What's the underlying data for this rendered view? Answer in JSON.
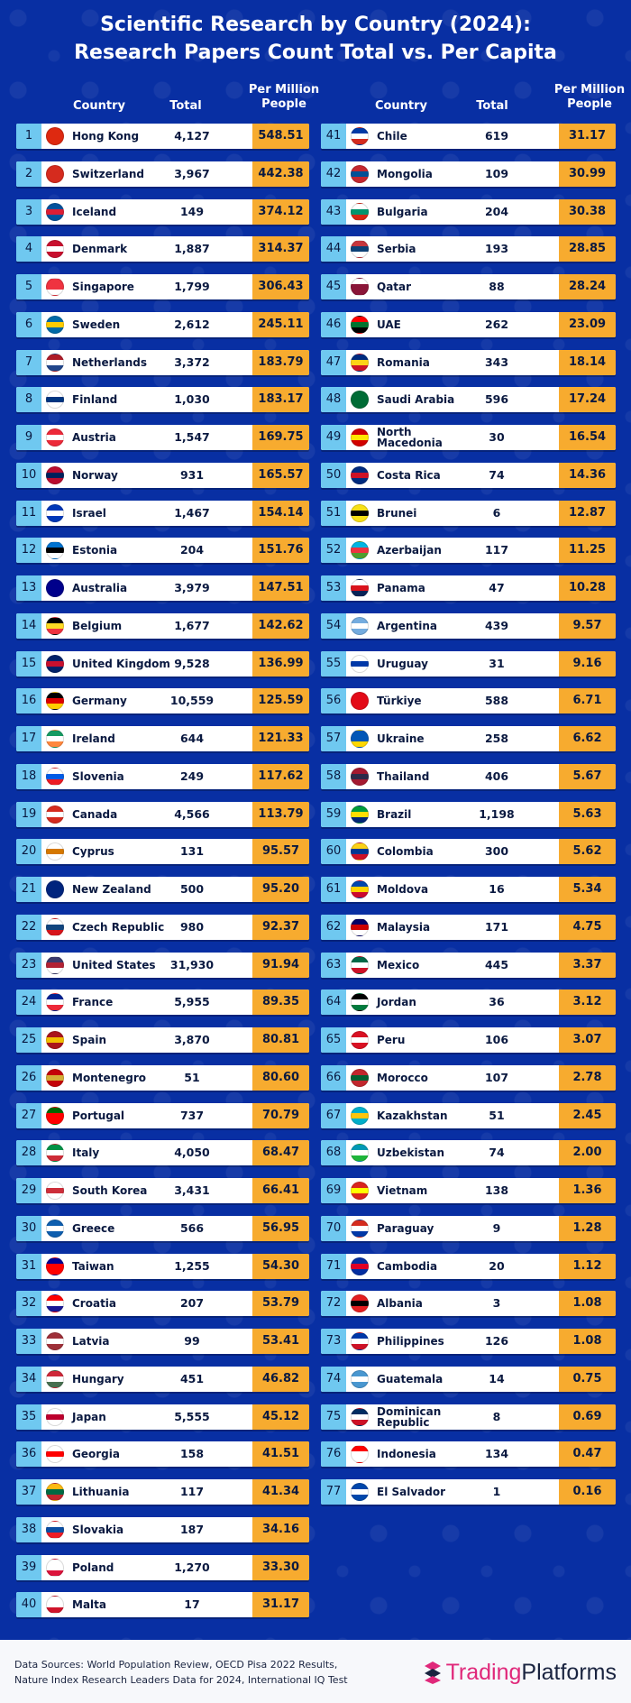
{
  "header": {
    "title_line1": "Scientific Research by Country (2024):",
    "title_line2": "Research Papers Count Total vs. Per Capita"
  },
  "columns": {
    "country": "Country",
    "total": "Total",
    "per_million_line1": "Per Million",
    "per_million_line2": "People"
  },
  "left_rows": [
    {
      "rank": "1",
      "country": "Hong Kong",
      "total": "4,127",
      "per_million": "548.51",
      "flag": [
        "#de2910",
        "#de2910",
        "#de2910"
      ]
    },
    {
      "rank": "2",
      "country": "Switzerland",
      "total": "3,967",
      "per_million": "442.38",
      "flag": [
        "#d52b1e",
        "#d52b1e",
        "#d52b1e"
      ]
    },
    {
      "rank": "3",
      "country": "Iceland",
      "total": "149",
      "per_million": "374.12",
      "flag": [
        "#02529c",
        "#dc1e35",
        "#02529c"
      ]
    },
    {
      "rank": "4",
      "country": "Denmark",
      "total": "1,887",
      "per_million": "314.37",
      "flag": [
        "#c8102e",
        "#ffffff",
        "#c8102e"
      ]
    },
    {
      "rank": "5",
      "country": "Singapore",
      "total": "1,799",
      "per_million": "306.43",
      "flag": [
        "#ef3340",
        "#ef3340",
        "#ffffff"
      ]
    },
    {
      "rank": "6",
      "country": "Sweden",
      "total": "2,612",
      "per_million": "245.11",
      "flag": [
        "#006aa7",
        "#fecc00",
        "#006aa7"
      ]
    },
    {
      "rank": "7",
      "country": "Netherlands",
      "total": "3,372",
      "per_million": "183.79",
      "flag": [
        "#ae1c28",
        "#ffffff",
        "#21468b"
      ]
    },
    {
      "rank": "8",
      "country": "Finland",
      "total": "1,030",
      "per_million": "183.17",
      "flag": [
        "#ffffff",
        "#003580",
        "#ffffff"
      ]
    },
    {
      "rank": "9",
      "country": "Austria",
      "total": "1,547",
      "per_million": "169.75",
      "flag": [
        "#ed2939",
        "#ffffff",
        "#ed2939"
      ]
    },
    {
      "rank": "10",
      "country": "Norway",
      "total": "931",
      "per_million": "165.57",
      "flag": [
        "#ba0c2f",
        "#00205b",
        "#ba0c2f"
      ]
    },
    {
      "rank": "11",
      "country": "Israel",
      "total": "1,467",
      "per_million": "154.14",
      "flag": [
        "#0038b8",
        "#ffffff",
        "#0038b8"
      ]
    },
    {
      "rank": "12",
      "country": "Estonia",
      "total": "204",
      "per_million": "151.76",
      "flag": [
        "#0072ce",
        "#000000",
        "#ffffff"
      ]
    },
    {
      "rank": "13",
      "country": "Australia",
      "total": "3,979",
      "per_million": "147.51",
      "flag": [
        "#00008b",
        "#00008b",
        "#00008b"
      ]
    },
    {
      "rank": "14",
      "country": "Belgium",
      "total": "1,677",
      "per_million": "142.62",
      "flag": [
        "#000000",
        "#fdda24",
        "#ef3340"
      ]
    },
    {
      "rank": "15",
      "country": "United Kingdom",
      "total": "9,528",
      "per_million": "136.99",
      "flag": [
        "#012169",
        "#c8102e",
        "#012169"
      ]
    },
    {
      "rank": "16",
      "country": "Germany",
      "total": "10,559",
      "per_million": "125.59",
      "flag": [
        "#000000",
        "#dd0000",
        "#ffce00"
      ]
    },
    {
      "rank": "17",
      "country": "Ireland",
      "total": "644",
      "per_million": "121.33",
      "flag": [
        "#169b62",
        "#ffffff",
        "#ff883e"
      ]
    },
    {
      "rank": "18",
      "country": "Slovenia",
      "total": "249",
      "per_million": "117.62",
      "flag": [
        "#ffffff",
        "#005ce5",
        "#ed1c24"
      ]
    },
    {
      "rank": "19",
      "country": "Canada",
      "total": "4,566",
      "per_million": "113.79",
      "flag": [
        "#d52b1e",
        "#ffffff",
        "#d52b1e"
      ]
    },
    {
      "rank": "20",
      "country": "Cyprus",
      "total": "131",
      "per_million": "95.57",
      "flag": [
        "#ffffff",
        "#d57800",
        "#ffffff"
      ]
    },
    {
      "rank": "21",
      "country": "New Zealand",
      "total": "500",
      "per_million": "95.20",
      "flag": [
        "#00247d",
        "#00247d",
        "#00247d"
      ]
    },
    {
      "rank": "22",
      "country": "Czech Republic",
      "total": "980",
      "per_million": "92.37",
      "flag": [
        "#ffffff",
        "#11457e",
        "#d7141a"
      ]
    },
    {
      "rank": "23",
      "country": "United States",
      "total": "31,930",
      "per_million": "91.94",
      "flag": [
        "#3c3b6e",
        "#b22234",
        "#ffffff"
      ]
    },
    {
      "rank": "24",
      "country": "France",
      "total": "5,955",
      "per_million": "89.35",
      "flag": [
        "#002395",
        "#ffffff",
        "#ed2939"
      ]
    },
    {
      "rank": "25",
      "country": "Spain",
      "total": "3,870",
      "per_million": "80.81",
      "flag": [
        "#aa151b",
        "#f1bf00",
        "#aa151b"
      ]
    },
    {
      "rank": "26",
      "country": "Montenegro",
      "total": "51",
      "per_million": "80.60",
      "flag": [
        "#c40308",
        "#d4af37",
        "#c40308"
      ]
    },
    {
      "rank": "27",
      "country": "Portugal",
      "total": "737",
      "per_million": "70.79",
      "flag": [
        "#006600",
        "#ff0000",
        "#ff0000"
      ]
    },
    {
      "rank": "28",
      "country": "Italy",
      "total": "4,050",
      "per_million": "68.47",
      "flag": [
        "#009246",
        "#ffffff",
        "#ce2b37"
      ]
    },
    {
      "rank": "29",
      "country": "South Korea",
      "total": "3,431",
      "per_million": "66.41",
      "flag": [
        "#ffffff",
        "#cd2e3a",
        "#ffffff"
      ]
    },
    {
      "rank": "30",
      "country": "Greece",
      "total": "566",
      "per_million": "56.95",
      "flag": [
        "#0d5eaf",
        "#ffffff",
        "#0d5eaf"
      ]
    },
    {
      "rank": "31",
      "country": "Taiwan",
      "total": "1,255",
      "per_million": "54.30",
      "flag": [
        "#000095",
        "#fe0000",
        "#fe0000"
      ]
    },
    {
      "rank": "32",
      "country": "Croatia",
      "total": "207",
      "per_million": "53.79",
      "flag": [
        "#ff0000",
        "#ffffff",
        "#171796"
      ]
    },
    {
      "rank": "33",
      "country": "Latvia",
      "total": "99",
      "per_million": "53.41",
      "flag": [
        "#9e3039",
        "#ffffff",
        "#9e3039"
      ]
    },
    {
      "rank": "34",
      "country": "Hungary",
      "total": "451",
      "per_million": "46.82",
      "flag": [
        "#ce2939",
        "#ffffff",
        "#477050"
      ]
    },
    {
      "rank": "35",
      "country": "Japan",
      "total": "5,555",
      "per_million": "45.12",
      "flag": [
        "#ffffff",
        "#bc002d",
        "#ffffff"
      ]
    },
    {
      "rank": "36",
      "country": "Georgia",
      "total": "158",
      "per_million": "41.51",
      "flag": [
        "#ffffff",
        "#ff0000",
        "#ffffff"
      ]
    },
    {
      "rank": "37",
      "country": "Lithuania",
      "total": "117",
      "per_million": "41.34",
      "flag": [
        "#fdb913",
        "#006a44",
        "#c1272d"
      ]
    },
    {
      "rank": "38",
      "country": "Slovakia",
      "total": "187",
      "per_million": "34.16",
      "flag": [
        "#ffffff",
        "#0b4ea2",
        "#ee1c25"
      ]
    },
    {
      "rank": "39",
      "country": "Poland",
      "total": "1,270",
      "per_million": "33.30",
      "flag": [
        "#ffffff",
        "#ffffff",
        "#dc143c"
      ]
    },
    {
      "rank": "40",
      "country": "Malta",
      "total": "17",
      "per_million": "31.17",
      "flag": [
        "#ffffff",
        "#ffffff",
        "#cf142b"
      ]
    }
  ],
  "right_rows": [
    {
      "rank": "41",
      "country": "Chile",
      "total": "619",
      "per_million": "31.17",
      "flag": [
        "#0039a6",
        "#ffffff",
        "#d52b1e"
      ]
    },
    {
      "rank": "42",
      "country": "Mongolia",
      "total": "109",
      "per_million": "30.99",
      "flag": [
        "#c4272f",
        "#015197",
        "#c4272f"
      ]
    },
    {
      "rank": "43",
      "country": "Bulgaria",
      "total": "204",
      "per_million": "30.38",
      "flag": [
        "#ffffff",
        "#00966e",
        "#d62612"
      ]
    },
    {
      "rank": "44",
      "country": "Serbia",
      "total": "193",
      "per_million": "28.85",
      "flag": [
        "#c6363c",
        "#0c4076",
        "#ffffff"
      ]
    },
    {
      "rank": "45",
      "country": "Qatar",
      "total": "88",
      "per_million": "28.24",
      "flag": [
        "#ffffff",
        "#8a1538",
        "#8a1538"
      ]
    },
    {
      "rank": "46",
      "country": "UAE",
      "total": "262",
      "per_million": "23.09",
      "flag": [
        "#ff0000",
        "#00732f",
        "#000000"
      ]
    },
    {
      "rank": "47",
      "country": "Romania",
      "total": "343",
      "per_million": "18.14",
      "flag": [
        "#002b7f",
        "#fcd116",
        "#ce1126"
      ]
    },
    {
      "rank": "48",
      "country": "Saudi Arabia",
      "total": "596",
      "per_million": "17.24",
      "flag": [
        "#006c35",
        "#006c35",
        "#006c35"
      ]
    },
    {
      "rank": "49",
      "country": "North Macedonia",
      "total": "30",
      "per_million": "16.54",
      "flag": [
        "#d20000",
        "#ffe600",
        "#d20000"
      ]
    },
    {
      "rank": "50",
      "country": "Costa Rica",
      "total": "74",
      "per_million": "14.36",
      "flag": [
        "#002b7f",
        "#ce1126",
        "#002b7f"
      ]
    },
    {
      "rank": "51",
      "country": "Brunei",
      "total": "6",
      "per_million": "12.87",
      "flag": [
        "#f7e017",
        "#000000",
        "#f7e017"
      ]
    },
    {
      "rank": "52",
      "country": "Azerbaijan",
      "total": "117",
      "per_million": "11.25",
      "flag": [
        "#00b5e2",
        "#ef3340",
        "#509e2f"
      ]
    },
    {
      "rank": "53",
      "country": "Panama",
      "total": "47",
      "per_million": "10.28",
      "flag": [
        "#ffffff",
        "#da121a",
        "#072357"
      ]
    },
    {
      "rank": "54",
      "country": "Argentina",
      "total": "439",
      "per_million": "9.57",
      "flag": [
        "#74acdf",
        "#ffffff",
        "#74acdf"
      ]
    },
    {
      "rank": "55",
      "country": "Uruguay",
      "total": "31",
      "per_million": "9.16",
      "flag": [
        "#ffffff",
        "#0038a8",
        "#ffffff"
      ]
    },
    {
      "rank": "56",
      "country": "Türkiye",
      "total": "588",
      "per_million": "6.71",
      "flag": [
        "#e30a17",
        "#e30a17",
        "#e30a17"
      ]
    },
    {
      "rank": "57",
      "country": "Ukraine",
      "total": "258",
      "per_million": "6.62",
      "flag": [
        "#0057b7",
        "#0057b7",
        "#ffd700"
      ]
    },
    {
      "rank": "58",
      "country": "Thailand",
      "total": "406",
      "per_million": "5.67",
      "flag": [
        "#a51931",
        "#2d2a4a",
        "#a51931"
      ]
    },
    {
      "rank": "59",
      "country": "Brazil",
      "total": "1,198",
      "per_million": "5.63",
      "flag": [
        "#009c3b",
        "#ffdf00",
        "#002776"
      ]
    },
    {
      "rank": "60",
      "country": "Colombia",
      "total": "300",
      "per_million": "5.62",
      "flag": [
        "#fcd116",
        "#003893",
        "#ce1126"
      ]
    },
    {
      "rank": "61",
      "country": "Moldova",
      "total": "16",
      "per_million": "5.34",
      "flag": [
        "#0046ae",
        "#ffd200",
        "#cc092f"
      ]
    },
    {
      "rank": "62",
      "country": "Malaysia",
      "total": "171",
      "per_million": "4.75",
      "flag": [
        "#010066",
        "#cc0001",
        "#ffffff"
      ]
    },
    {
      "rank": "63",
      "country": "Mexico",
      "total": "445",
      "per_million": "3.37",
      "flag": [
        "#006847",
        "#ffffff",
        "#ce1126"
      ]
    },
    {
      "rank": "64",
      "country": "Jordan",
      "total": "36",
      "per_million": "3.12",
      "flag": [
        "#000000",
        "#ffffff",
        "#007a3d"
      ]
    },
    {
      "rank": "65",
      "country": "Peru",
      "total": "106",
      "per_million": "3.07",
      "flag": [
        "#d91023",
        "#ffffff",
        "#d91023"
      ]
    },
    {
      "rank": "66",
      "country": "Morocco",
      "total": "107",
      "per_million": "2.78",
      "flag": [
        "#c1272d",
        "#006233",
        "#c1272d"
      ]
    },
    {
      "rank": "67",
      "country": "Kazakhstan",
      "total": "51",
      "per_million": "2.45",
      "flag": [
        "#00afca",
        "#fec50c",
        "#00afca"
      ]
    },
    {
      "rank": "68",
      "country": "Uzbekistan",
      "total": "74",
      "per_million": "2.00",
      "flag": [
        "#0099b5",
        "#ffffff",
        "#1eb53a"
      ]
    },
    {
      "rank": "69",
      "country": "Vietnam",
      "total": "138",
      "per_million": "1.36",
      "flag": [
        "#da251d",
        "#ffff00",
        "#da251d"
      ]
    },
    {
      "rank": "70",
      "country": "Paraguay",
      "total": "9",
      "per_million": "1.28",
      "flag": [
        "#d52b1e",
        "#ffffff",
        "#0038a8"
      ]
    },
    {
      "rank": "71",
      "country": "Cambodia",
      "total": "20",
      "per_million": "1.12",
      "flag": [
        "#032ea1",
        "#e00025",
        "#032ea1"
      ]
    },
    {
      "rank": "72",
      "country": "Albania",
      "total": "3",
      "per_million": "1.08",
      "flag": [
        "#e41e20",
        "#000000",
        "#e41e20"
      ]
    },
    {
      "rank": "73",
      "country": "Philippines",
      "total": "126",
      "per_million": "1.08",
      "flag": [
        "#0038a8",
        "#ffffff",
        "#ce1126"
      ]
    },
    {
      "rank": "74",
      "country": "Guatemala",
      "total": "14",
      "per_million": "0.75",
      "flag": [
        "#4997d0",
        "#ffffff",
        "#4997d0"
      ]
    },
    {
      "rank": "75",
      "country": "Dominican Republic",
      "total": "8",
      "per_million": "0.69",
      "flag": [
        "#002d62",
        "#ffffff",
        "#ce1126"
      ]
    },
    {
      "rank": "76",
      "country": "Indonesia",
      "total": "134",
      "per_million": "0.47",
      "flag": [
        "#ff0000",
        "#ffffff",
        "#ffffff"
      ]
    },
    {
      "rank": "77",
      "country": "El Salvador",
      "total": "1",
      "per_million": "0.16",
      "flag": [
        "#0047ab",
        "#ffffff",
        "#0047ab"
      ]
    }
  ],
  "footer": {
    "sources_line1": "Data Sources: World Population Review, OECD Pisa 2022 Results,",
    "sources_line2": "Nature Index Research Leaders Data for 2024, International IQ Test",
    "brand_part1": "Trading",
    "brand_part2": "Platforms",
    "brand_icon": "trading-platforms-logo-icon",
    "brand_color": "#e0287a"
  },
  "colors": {
    "background": "#082fa3",
    "rank_cell": "#6fc8f0",
    "value_cell": "#f7ab2f",
    "row": "#ffffff"
  }
}
